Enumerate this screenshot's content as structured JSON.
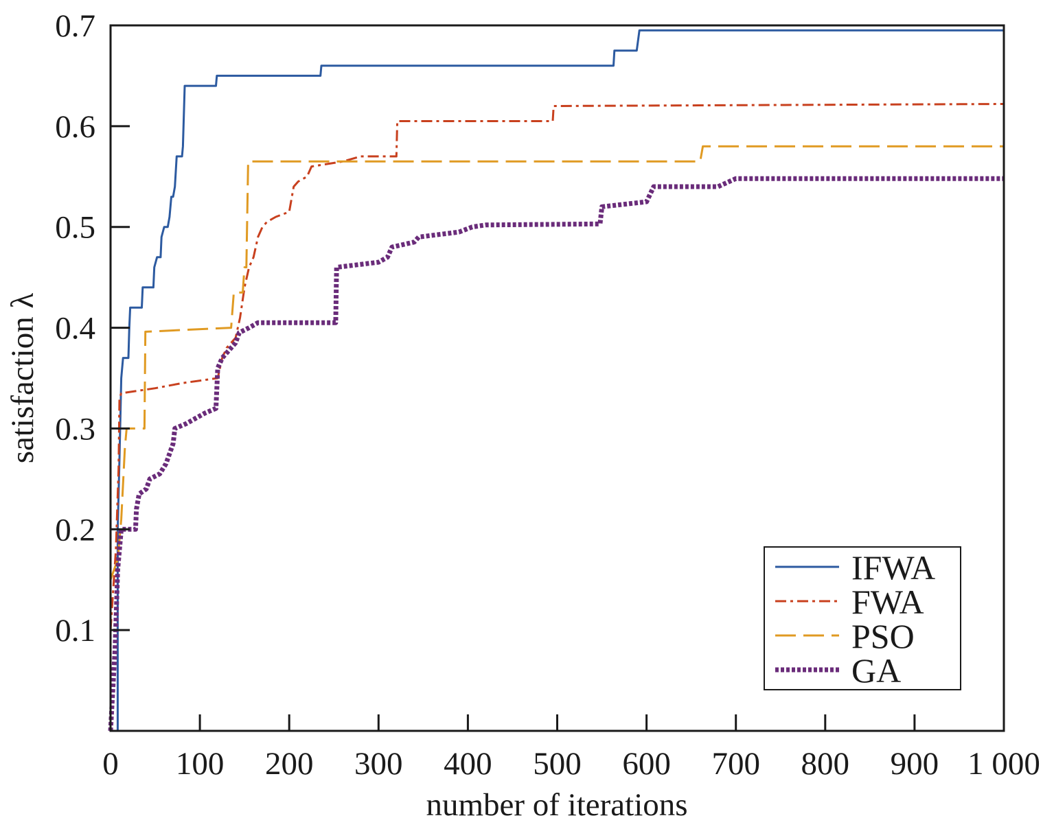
{
  "chart_data": {
    "type": "line",
    "xlabel": "number of iterations",
    "ylabel": "satisfaction λ",
    "xlim": [
      0,
      1000
    ],
    "ylim": [
      0,
      0.7
    ],
    "x_ticks": [
      0,
      100,
      200,
      300,
      400,
      500,
      600,
      700,
      800,
      900,
      1000
    ],
    "x_tick_labels": [
      "0",
      "100",
      "200",
      "300",
      "400",
      "500",
      "600",
      "700",
      "800",
      "900",
      "1 000"
    ],
    "y_ticks": [
      0.1,
      0.2,
      0.3,
      0.4,
      0.5,
      0.6,
      0.7
    ],
    "y_tick_labels": [
      "0.1",
      "0.2",
      "0.3",
      "0.4",
      "0.5",
      "0.6",
      "0.7"
    ],
    "grid": false,
    "legend_position": "bottom-right",
    "series": [
      {
        "name": "IFWA",
        "color": "#2c5aa0",
        "style": "solid",
        "points": [
          [
            8,
            0
          ],
          [
            8,
            0.2
          ],
          [
            10,
            0.27
          ],
          [
            12,
            0.35
          ],
          [
            14,
            0.37
          ],
          [
            20,
            0.37
          ],
          [
            21,
            0.4
          ],
          [
            22,
            0.42
          ],
          [
            35,
            0.42
          ],
          [
            36,
            0.44
          ],
          [
            48,
            0.44
          ],
          [
            49,
            0.46
          ],
          [
            52,
            0.47
          ],
          [
            56,
            0.47
          ],
          [
            57,
            0.49
          ],
          [
            60,
            0.5
          ],
          [
            64,
            0.5
          ],
          [
            66,
            0.51
          ],
          [
            68,
            0.53
          ],
          [
            70,
            0.53
          ],
          [
            72,
            0.54
          ],
          [
            74,
            0.57
          ],
          [
            80,
            0.57
          ],
          [
            81,
            0.58
          ],
          [
            83,
            0.64
          ],
          [
            118,
            0.64
          ],
          [
            119,
            0.65
          ],
          [
            235,
            0.65
          ],
          [
            236,
            0.66
          ],
          [
            563,
            0.66
          ],
          [
            564,
            0.675
          ],
          [
            589,
            0.675
          ],
          [
            592,
            0.695
          ],
          [
            1000,
            0.695
          ]
        ]
      },
      {
        "name": "FWA",
        "color": "#c8401e",
        "style": "dashdot",
        "points": [
          [
            0,
            0.1
          ],
          [
            6,
            0.18
          ],
          [
            9,
            0.26
          ],
          [
            10,
            0.33
          ],
          [
            12,
            0.335
          ],
          [
            50,
            0.34
          ],
          [
            80,
            0.345
          ],
          [
            120,
            0.35
          ],
          [
            125,
            0.37
          ],
          [
            130,
            0.38
          ],
          [
            140,
            0.39
          ],
          [
            145,
            0.41
          ],
          [
            150,
            0.44
          ],
          [
            155,
            0.46
          ],
          [
            160,
            0.47
          ],
          [
            165,
            0.49
          ],
          [
            170,
            0.5
          ],
          [
            175,
            0.505
          ],
          [
            185,
            0.51
          ],
          [
            200,
            0.515
          ],
          [
            205,
            0.54
          ],
          [
            210,
            0.545
          ],
          [
            220,
            0.55
          ],
          [
            225,
            0.56
          ],
          [
            260,
            0.565
          ],
          [
            280,
            0.57
          ],
          [
            320,
            0.57
          ],
          [
            321,
            0.605
          ],
          [
            495,
            0.605
          ],
          [
            496,
            0.62
          ],
          [
            1000,
            0.622
          ]
        ]
      },
      {
        "name": "PSO",
        "color": "#e09a22",
        "style": "dashed",
        "points": [
          [
            0,
            0.15
          ],
          [
            8,
            0.17
          ],
          [
            12,
            0.21
          ],
          [
            16,
            0.28
          ],
          [
            18,
            0.3
          ],
          [
            38,
            0.3
          ],
          [
            39,
            0.396
          ],
          [
            135,
            0.4
          ],
          [
            138,
            0.435
          ],
          [
            148,
            0.435
          ],
          [
            150,
            0.46
          ],
          [
            152,
            0.46
          ],
          [
            154,
            0.565
          ],
          [
            660,
            0.565
          ],
          [
            663,
            0.58
          ],
          [
            1000,
            0.58
          ]
        ]
      },
      {
        "name": "GA",
        "color": "#6a2c7a",
        "style": "dotted",
        "points": [
          [
            0,
            0
          ],
          [
            5,
            0.08
          ],
          [
            8,
            0.16
          ],
          [
            12,
            0.2
          ],
          [
            28,
            0.2
          ],
          [
            29,
            0.22
          ],
          [
            32,
            0.235
          ],
          [
            40,
            0.24
          ],
          [
            44,
            0.25
          ],
          [
            55,
            0.255
          ],
          [
            62,
            0.265
          ],
          [
            70,
            0.285
          ],
          [
            72,
            0.3
          ],
          [
            85,
            0.305
          ],
          [
            105,
            0.315
          ],
          [
            118,
            0.32
          ],
          [
            120,
            0.36
          ],
          [
            125,
            0.37
          ],
          [
            140,
            0.385
          ],
          [
            144,
            0.395
          ],
          [
            155,
            0.4
          ],
          [
            165,
            0.405
          ],
          [
            252,
            0.405
          ],
          [
            253,
            0.46
          ],
          [
            300,
            0.465
          ],
          [
            310,
            0.47
          ],
          [
            315,
            0.48
          ],
          [
            340,
            0.485
          ],
          [
            345,
            0.49
          ],
          [
            390,
            0.495
          ],
          [
            405,
            0.5
          ],
          [
            420,
            0.502
          ],
          [
            548,
            0.503
          ],
          [
            550,
            0.52
          ],
          [
            600,
            0.525
          ],
          [
            608,
            0.54
          ],
          [
            680,
            0.54
          ],
          [
            700,
            0.548
          ],
          [
            1000,
            0.548
          ]
        ]
      }
    ]
  }
}
